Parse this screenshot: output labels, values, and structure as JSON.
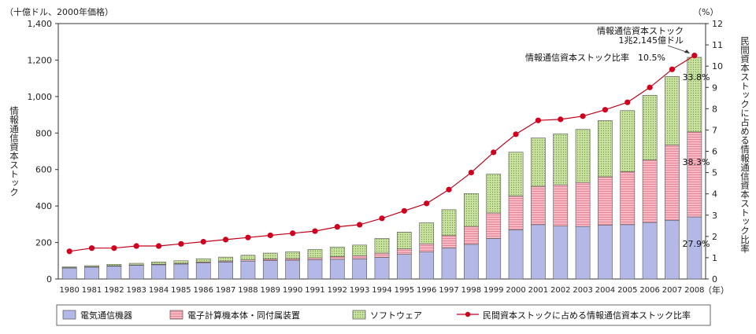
{
  "chart_data": {
    "type": "bar",
    "stacked": true,
    "categories": [
      "1980",
      "1981",
      "1982",
      "1983",
      "1984",
      "1985",
      "1986",
      "1987",
      "1988",
      "1989",
      "1990",
      "1991",
      "1992",
      "1993",
      "1994",
      "1995",
      "1996",
      "1997",
      "1998",
      "1999",
      "2000",
      "2001",
      "2002",
      "2003",
      "2004",
      "2005",
      "2006",
      "2007",
      "2008"
    ],
    "series": [
      {
        "name": "電気通信機器",
        "color": "#b4b8e6",
        "pattern": "none",
        "values": [
          60,
          65,
          70,
          75,
          78,
          82,
          88,
          93,
          98,
          102,
          103,
          105,
          108,
          110,
          118,
          135,
          148,
          170,
          190,
          222,
          270,
          298,
          290,
          288,
          295,
          298,
          310,
          322,
          340
        ]
      },
      {
        "name": "電子計算機本体・同付属装置",
        "color": "#f6b9c4",
        "pattern": "hatch",
        "values": [
          2,
          2,
          2,
          2,
          3,
          4,
          5,
          6,
          7,
          8,
          9,
          11,
          15,
          18,
          24,
          30,
          45,
          68,
          98,
          140,
          185,
          210,
          226,
          241,
          265,
          290,
          342,
          412,
          466
        ]
      },
      {
        "name": "ソフトウェア",
        "color": "#c8e0a0",
        "pattern": "dots",
        "values": [
          4,
          6,
          8,
          9,
          12,
          14,
          18,
          21,
          25,
          32,
          37,
          46,
          52,
          58,
          80,
          92,
          115,
          142,
          180,
          213,
          240,
          265,
          280,
          291,
          308,
          335,
          355,
          376,
          409
        ]
      }
    ],
    "line": {
      "name": "民間資本ストックに占める情報通信資本ストック比率",
      "values": [
        1.3,
        1.45,
        1.45,
        1.55,
        1.55,
        1.65,
        1.75,
        1.85,
        1.95,
        2.05,
        2.15,
        2.25,
        2.45,
        2.55,
        2.85,
        3.2,
        3.55,
        4.2,
        5.0,
        5.95,
        6.8,
        7.45,
        7.5,
        7.65,
        7.95,
        8.3,
        9.0,
        9.85,
        10.5
      ]
    },
    "y_left": {
      "min": 0,
      "max": 1400,
      "step": 200,
      "unit": "（十億ドル、2000年価格）",
      "label": "情報通信資本ストック"
    },
    "y_right": {
      "min": 0,
      "max": 12,
      "step": 1,
      "unit": "（%）",
      "label": "民間資本ストックに占める情報通信資本ストック比率"
    },
    "x_unit": "（年）",
    "annotations": {
      "total_line1": "情報通信資本ストック",
      "total_line2": "1兆2,145億ドル",
      "ratio": "情報通信資本ストック比率　10.5%",
      "pct_software": "33.8%",
      "pct_computer": "38.3%",
      "pct_telecom": "27.9%"
    },
    "grid": false,
    "legend": "bottom"
  }
}
